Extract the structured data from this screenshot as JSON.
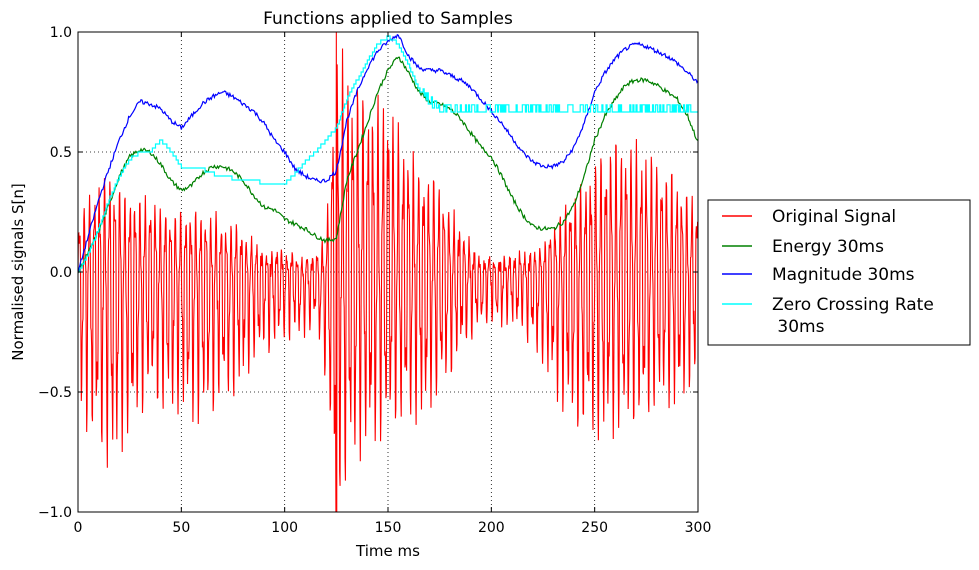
{
  "chart_data": {
    "type": "line",
    "title": "Functions applied to Samples",
    "xlabel": "Time ms",
    "ylabel": "Normalised signals S[n]",
    "xlim": [
      0,
      300
    ],
    "ylim": [
      -1.0,
      1.0
    ],
    "x_ticks": [
      "0",
      "50",
      "100",
      "150",
      "200",
      "250",
      "300"
    ],
    "y_ticks": [
      "−1.0",
      "−0.5",
      "0.0",
      "0.5",
      "1.0"
    ],
    "grid": true,
    "legend_position": "right-outside",
    "series": [
      {
        "name": "Original Signal",
        "color": "#ff0000",
        "kind": "oscillation",
        "x": [
          0,
          10,
          17,
          25,
          35,
          45,
          55,
          65,
          75,
          85,
          95,
          105,
          115,
          120,
          125,
          135,
          145,
          150,
          155,
          165,
          175,
          185,
          195,
          205,
          215,
          225,
          235,
          245,
          252,
          260,
          270,
          280,
          290,
          300
        ],
        "max": [
          0.25,
          0.4,
          0.4,
          0.35,
          0.3,
          0.27,
          0.25,
          0.23,
          0.22,
          0.12,
          0.08,
          0.07,
          0.05,
          0.15,
          1.0,
          0.8,
          0.75,
          0.78,
          0.65,
          0.45,
          0.38,
          0.18,
          0.07,
          0.05,
          0.07,
          0.12,
          0.28,
          0.42,
          0.5,
          0.58,
          0.55,
          0.5,
          0.4,
          0.3
        ],
        "min": [
          -0.6,
          -0.78,
          -0.85,
          -0.7,
          -0.55,
          -0.6,
          -0.65,
          -0.6,
          -0.55,
          -0.4,
          -0.3,
          -0.28,
          -0.25,
          -0.5,
          -1.0,
          -0.8,
          -0.72,
          -0.7,
          -0.65,
          -0.65,
          -0.55,
          -0.35,
          -0.25,
          -0.22,
          -0.25,
          -0.4,
          -0.6,
          -0.7,
          -0.73,
          -0.7,
          -0.65,
          -0.6,
          -0.58,
          -0.45
        ]
      },
      {
        "name": "Energy 30ms",
        "color": "#008000",
        "x": [
          0,
          5,
          10,
          15,
          20,
          25,
          30,
          35,
          40,
          45,
          50,
          55,
          60,
          65,
          70,
          75,
          80,
          85,
          90,
          95,
          100,
          105,
          110,
          115,
          120,
          125,
          130,
          135,
          140,
          145,
          150,
          155,
          160,
          165,
          170,
          175,
          180,
          185,
          190,
          195,
          200,
          205,
          210,
          215,
          220,
          225,
          230,
          235,
          240,
          245,
          250,
          255,
          260,
          265,
          270,
          275,
          280,
          285,
          290,
          295,
          300
        ],
        "values": [
          0.0,
          0.08,
          0.17,
          0.28,
          0.4,
          0.48,
          0.51,
          0.5,
          0.45,
          0.38,
          0.34,
          0.36,
          0.41,
          0.44,
          0.44,
          0.42,
          0.38,
          0.32,
          0.27,
          0.26,
          0.22,
          0.2,
          0.18,
          0.15,
          0.13,
          0.14,
          0.38,
          0.5,
          0.62,
          0.75,
          0.84,
          0.9,
          0.83,
          0.75,
          0.71,
          0.7,
          0.68,
          0.64,
          0.58,
          0.52,
          0.48,
          0.4,
          0.31,
          0.24,
          0.19,
          0.18,
          0.18,
          0.21,
          0.28,
          0.4,
          0.55,
          0.65,
          0.72,
          0.78,
          0.8,
          0.8,
          0.78,
          0.75,
          0.72,
          0.65,
          0.54
        ]
      },
      {
        "name": "Magnitude 30ms",
        "color": "#0000ff",
        "x": [
          0,
          5,
          10,
          15,
          20,
          25,
          30,
          35,
          40,
          45,
          50,
          55,
          60,
          65,
          70,
          75,
          80,
          85,
          90,
          95,
          100,
          105,
          110,
          115,
          120,
          125,
          130,
          135,
          140,
          145,
          150,
          155,
          160,
          165,
          170,
          175,
          180,
          185,
          190,
          195,
          200,
          205,
          210,
          215,
          220,
          225,
          230,
          235,
          240,
          245,
          250,
          255,
          260,
          265,
          270,
          275,
          280,
          285,
          290,
          295,
          300
        ],
        "values": [
          0.0,
          0.15,
          0.3,
          0.43,
          0.55,
          0.65,
          0.71,
          0.7,
          0.68,
          0.63,
          0.6,
          0.65,
          0.7,
          0.73,
          0.75,
          0.73,
          0.7,
          0.67,
          0.62,
          0.55,
          0.5,
          0.43,
          0.4,
          0.38,
          0.38,
          0.42,
          0.63,
          0.75,
          0.85,
          0.92,
          0.96,
          0.99,
          0.9,
          0.85,
          0.84,
          0.84,
          0.82,
          0.8,
          0.77,
          0.72,
          0.67,
          0.62,
          0.56,
          0.5,
          0.46,
          0.44,
          0.44,
          0.46,
          0.52,
          0.62,
          0.75,
          0.83,
          0.89,
          0.93,
          0.95,
          0.94,
          0.92,
          0.9,
          0.87,
          0.83,
          0.79
        ]
      },
      {
        "name": "Zero Crossing Rate\n 30ms",
        "color": "#00ffff",
        "step": true,
        "x": [
          0,
          5,
          10,
          15,
          20,
          25,
          30,
          35,
          40,
          45,
          50,
          55,
          60,
          65,
          70,
          75,
          80,
          85,
          90,
          95,
          100,
          105,
          110,
          115,
          120,
          125,
          130,
          135,
          140,
          145,
          150,
          155,
          160,
          165,
          170,
          175,
          180,
          185,
          190,
          195,
          200,
          205,
          210,
          215,
          220,
          225,
          230,
          235,
          240,
          245,
          250,
          255,
          260,
          265,
          270,
          275,
          280,
          285,
          290,
          295,
          300
        ],
        "values": [
          0.0,
          0.08,
          0.18,
          0.3,
          0.4,
          0.47,
          0.5,
          0.5,
          0.55,
          0.5,
          0.44,
          0.44,
          0.43,
          0.41,
          0.4,
          0.39,
          0.38,
          0.38,
          0.37,
          0.37,
          0.37,
          0.41,
          0.46,
          0.5,
          0.55,
          0.6,
          0.72,
          0.8,
          0.88,
          0.95,
          0.98,
          0.95,
          0.86,
          0.76,
          0.7,
          0.67,
          0.66,
          0.66,
          0.66,
          0.66,
          0.66,
          0.66,
          0.66,
          0.66,
          0.66,
          0.66,
          0.66,
          0.66,
          0.66,
          0.66,
          0.66,
          0.66,
          0.66,
          0.66,
          0.66,
          0.66,
          0.66,
          0.66,
          0.66,
          0.66,
          0.66
        ]
      }
    ]
  }
}
